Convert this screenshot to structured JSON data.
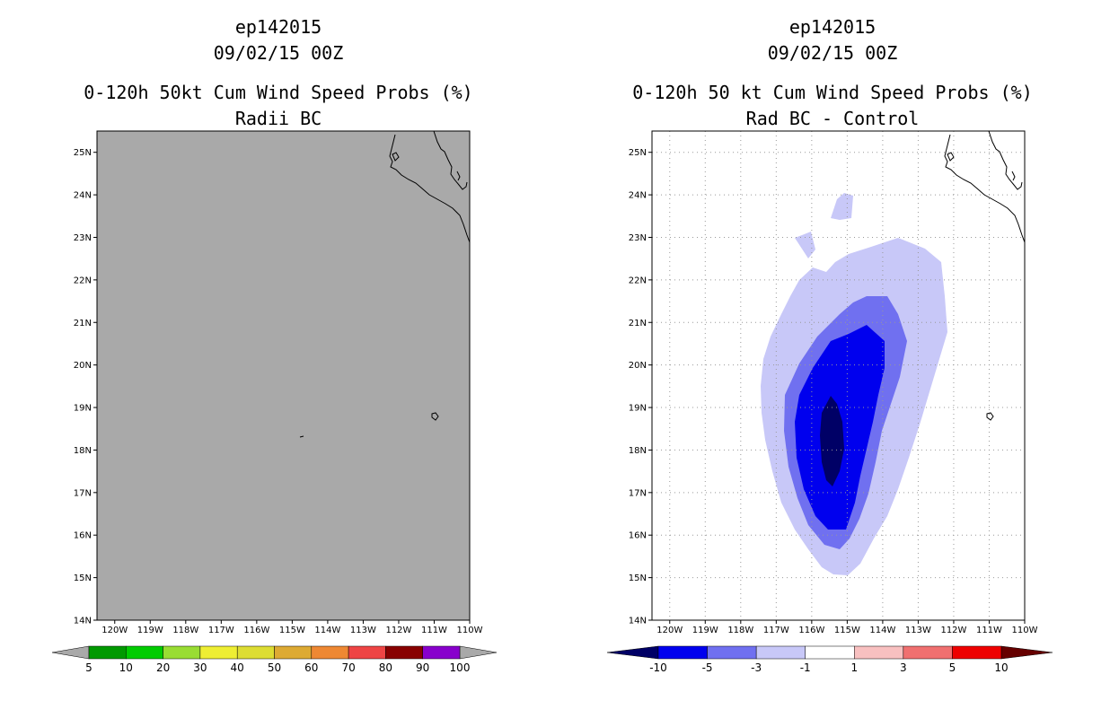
{
  "chart_data": [
    {
      "type": "map-contour",
      "storm_id": "ep142015",
      "datetime": "09/02/15 00Z",
      "title": "0-120h 50kt Cum Wind Speed Probs (%)",
      "subtitle": "Radii BC",
      "lat_ticks": [
        "14N",
        "15N",
        "16N",
        "17N",
        "18N",
        "19N",
        "20N",
        "21N",
        "22N",
        "23N",
        "24N",
        "25N"
      ],
      "lon_ticks": [
        "120W",
        "119W",
        "118W",
        "117W",
        "116W",
        "115W",
        "114W",
        "113W",
        "112W",
        "111W",
        "110W"
      ],
      "lon_range": [
        -120.5,
        -110.0
      ],
      "lat_range": [
        14.0,
        25.5
      ],
      "background_color": "#a9a9a9",
      "grid": false,
      "colorbar": {
        "labels": [
          "5",
          "10",
          "20",
          "30",
          "40",
          "50",
          "60",
          "70",
          "80",
          "90",
          "100"
        ],
        "colors": [
          "#009900",
          "#00cc00",
          "#99dd33",
          "#eeee33",
          "#dddd33",
          "#ddaa33",
          "#ee8833",
          "#ee4444",
          "#880000",
          "#8800cc"
        ],
        "left_arrow_color": "#a9a9a9",
        "right_arrow_color": "#a9a9a9"
      }
    },
    {
      "type": "map-contour",
      "storm_id": "ep142015",
      "datetime": "09/02/15 00Z",
      "title": "0-120h 50 kt Cum Wind Speed Probs (%)",
      "subtitle": "Rad BC - Control",
      "lat_ticks": [
        "14N",
        "15N",
        "16N",
        "17N",
        "18N",
        "19N",
        "20N",
        "21N",
        "22N",
        "23N",
        "24N",
        "25N"
      ],
      "lon_ticks": [
        "120W",
        "119W",
        "118W",
        "117W",
        "116W",
        "115W",
        "114W",
        "113W",
        "112W",
        "111W",
        "110W"
      ],
      "lon_range": [
        -120.5,
        -110.0
      ],
      "lat_range": [
        14.0,
        25.5
      ],
      "background_color": "#ffffff",
      "grid": true,
      "contour_levels": [
        {
          "level": "-1 to -3",
          "color": "#c8c8f8"
        },
        {
          "level": "-3 to -5",
          "color": "#7070f0"
        },
        {
          "level": "-5 to -10",
          "color": "#0000ee"
        },
        {
          "level": "< -10",
          "color": "#000066"
        }
      ],
      "colorbar": {
        "labels": [
          "-10",
          "-5",
          "-3",
          "-1",
          "1",
          "3",
          "5",
          "10"
        ],
        "colors": [
          "#0000ee",
          "#7070f0",
          "#c8c8f8",
          "#ffffff",
          "#f8c0c0",
          "#f07070",
          "#ee0000"
        ],
        "left_arrow_color": "#000066",
        "right_arrow_color": "#660000"
      }
    }
  ]
}
